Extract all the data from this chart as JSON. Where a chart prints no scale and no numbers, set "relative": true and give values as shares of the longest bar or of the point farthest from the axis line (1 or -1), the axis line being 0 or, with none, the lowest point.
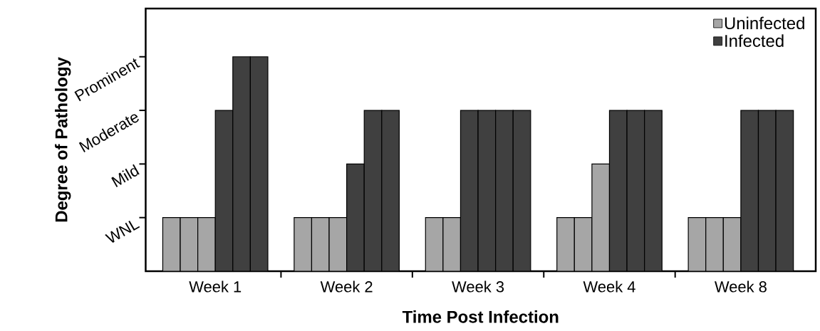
{
  "chart_data": {
    "type": "bar",
    "xlabel": "Time Post Infection",
    "ylabel": "Degree of Pathology",
    "relative": true,
    "categories": [
      "Week 1",
      "Week 2",
      "Week 3",
      "Week 4",
      "Week 8"
    ],
    "annotations": [
      "WNL",
      "Mild",
      "Moderate",
      "Prominent"
    ],
    "series": [
      {
        "name": "Uninfected",
        "color": "#a6a6a6",
        "values": [
          0.25,
          0.25,
          0.25,
          0.25,
          0.25
        ]
      },
      {
        "colors": [
          "#a6a6a6",
          "#a6a6a6",
          "#a6a6a6",
          "#a6a6a6",
          "#a6a6a6"
        ],
        "values": [
          0.25,
          0.25,
          0.25,
          0.25,
          0.25
        ]
      },
      {
        "colors": [
          "#a6a6a6",
          "#a6a6a6",
          "#404040",
          "#a6a6a6",
          "#a6a6a6"
        ],
        "values": [
          0.25,
          0.25,
          0.75,
          0.5,
          0.25
        ]
      },
      {
        "colors": [
          "#404040",
          "#404040",
          "#404040",
          "#404040",
          "#404040"
        ],
        "values": [
          0.75,
          0.5,
          0.75,
          0.75,
          0.75
        ]
      },
      {
        "colors": [
          "#404040",
          "#404040",
          "#404040",
          "#404040",
          "#404040"
        ],
        "values": [
          1,
          0.75,
          0.75,
          0.75,
          0.75
        ]
      },
      {
        "name": "Infected",
        "color": "#404040",
        "values": [
          1,
          0.75,
          0.75,
          0.75,
          0.75
        ]
      }
    ],
    "legend": "top right",
    "grid": false
  }
}
